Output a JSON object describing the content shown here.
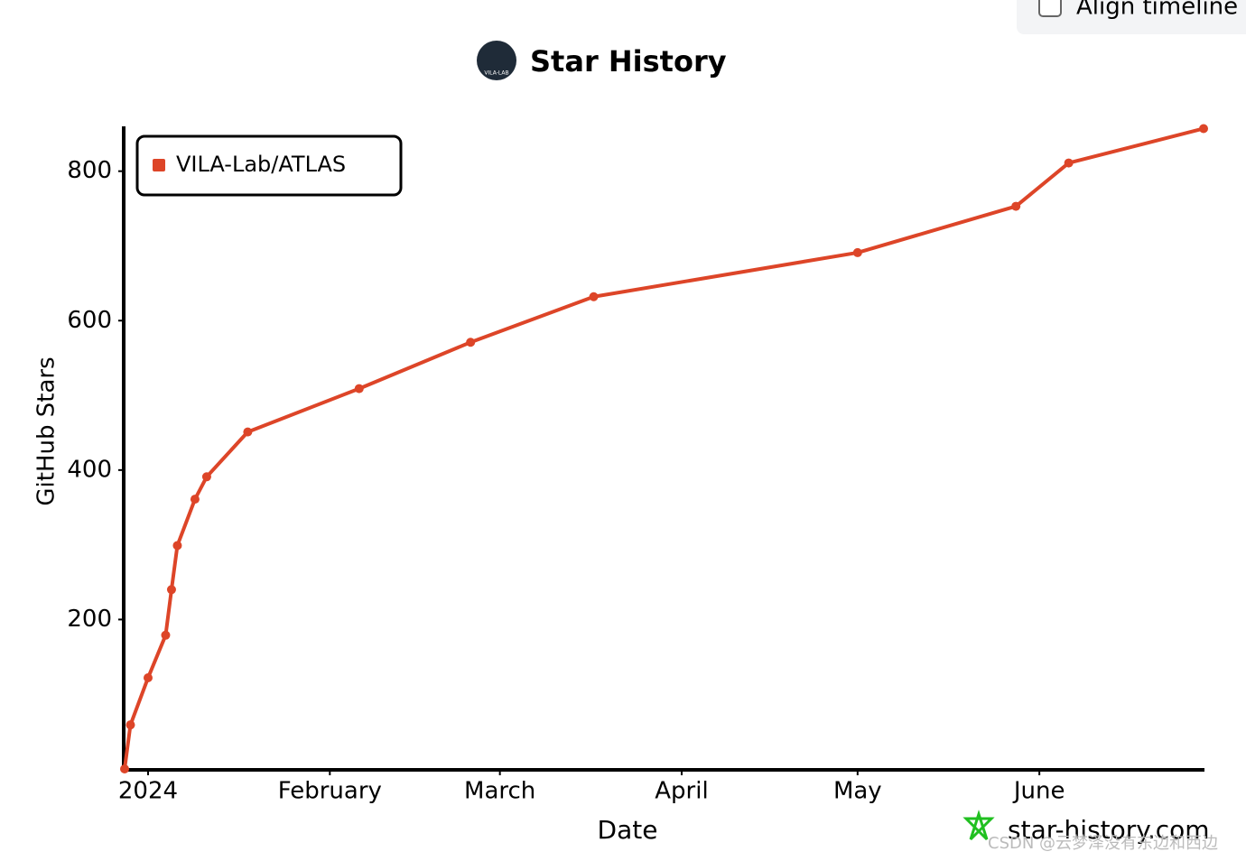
{
  "align_timeline_label": "Align timeline",
  "logo_text": "VILA-LAB",
  "watermark": "star-history.com",
  "csdn_watermark": "CSDN @云梦泽没有东边和西边",
  "chart_data": {
    "type": "line",
    "title": "Star History",
    "x_label": "Date",
    "y_label": "GitHub Stars",
    "x": [
      -4,
      -3,
      0,
      3,
      4,
      5,
      8,
      10,
      17,
      36,
      55,
      76,
      121,
      148,
      157,
      180
    ],
    "series": [
      {
        "name": "VILA-Lab/ATLAS",
        "color": "#dd4528",
        "values": [
          0,
          59,
          122,
          179,
          240,
          299,
          361,
          391,
          451,
          509,
          571,
          632,
          691,
          753,
          811,
          857
        ]
      }
    ],
    "xlim": [
      -4,
      180
    ],
    "xticks": [
      {
        "value": 0,
        "label": "2024"
      },
      {
        "value": 31,
        "label": "February"
      },
      {
        "value": 60,
        "label": "March"
      },
      {
        "value": 91,
        "label": "April"
      },
      {
        "value": 121,
        "label": "May"
      },
      {
        "value": 152,
        "label": "June"
      }
    ],
    "ylim": [
      0,
      860
    ],
    "yticks": [
      200,
      400,
      600,
      800
    ],
    "legend": "top-left"
  }
}
